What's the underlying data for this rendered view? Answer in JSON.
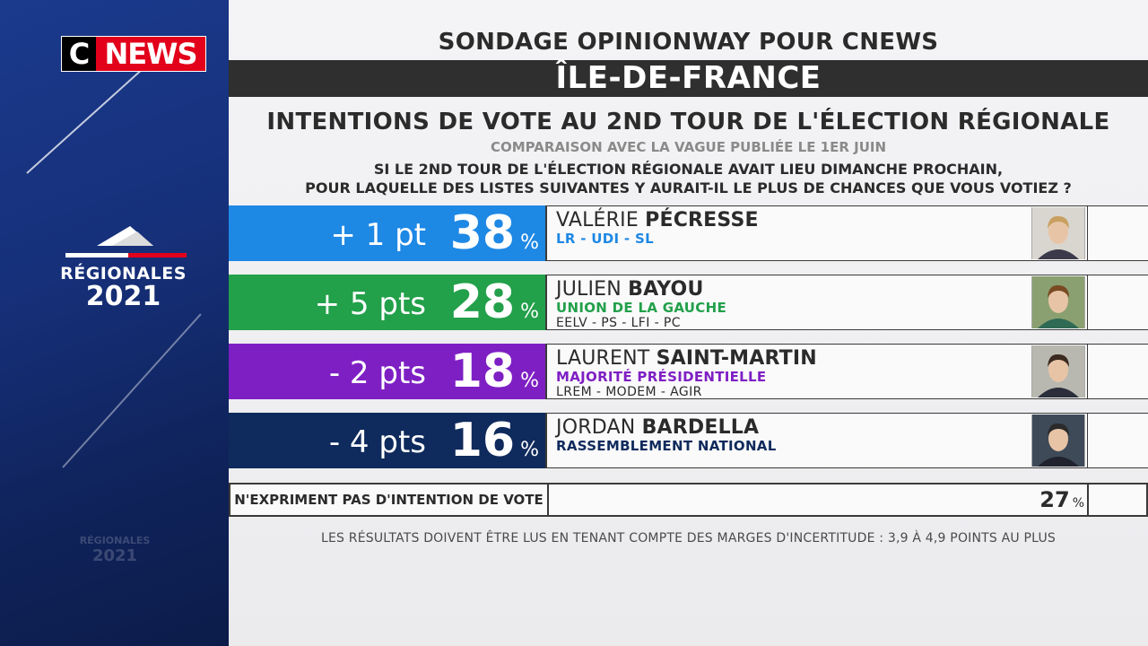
{
  "branding": {
    "logo_c": "C",
    "logo_news": "NEWS",
    "event_title": "RÉGIONALES",
    "event_year": "2021",
    "ghost_title": "RÉGIONALES",
    "ghost_year": "2021",
    "colors": {
      "side_blue": "#1b3a8c",
      "logo_red": "#e2001a"
    }
  },
  "header": {
    "poll_source": "SONDAGE OPINIONWAY POUR CNEWS",
    "region": "ÎLE-DE-FRANCE",
    "question_title": "INTENTIONS DE VOTE AU 2ND TOUR DE L'ÉLECTION RÉGIONALE",
    "comparison_note": "COMPARAISON AVEC LA VAGUE PUBLIÉE LE 1ER JUIN",
    "question_line1": "SI LE 2ND TOUR DE L'ÉLECTION RÉGIONALE AVAIT LIEU DIMANCHE PROCHAIN,",
    "question_line2": "POUR LAQUELLE DES LISTES SUIVANTES Y AURAIT-IL LE PLUS DE CHANCES QUE VOUS VOTIEZ ?"
  },
  "chart_data": {
    "type": "table",
    "percent_sign": "%",
    "rows": [
      {
        "first_name": "VALÉRIE",
        "last_name": "PÉCRESSE",
        "party": "LR - UDI - SL",
        "sub_party": "",
        "value": 38,
        "delta": "+ 1 pt",
        "color": "#1e88e5",
        "party_color": "#1e88e5"
      },
      {
        "first_name": "JULIEN",
        "last_name": "BAYOU",
        "party": "UNION DE LA GAUCHE",
        "sub_party": "EELV - PS - LFI - PC",
        "value": 28,
        "delta": "+ 5 pts",
        "color": "#22a04a",
        "party_color": "#22a04a"
      },
      {
        "first_name": "LAURENT",
        "last_name": "SAINT-MARTIN",
        "party": "MAJORITÉ PRÉSIDENTIELLE",
        "sub_party": "LREM - MODEM - AGIR",
        "value": 18,
        "delta": "- 2 pts",
        "color": "#7e1fc4",
        "party_color": "#7e1fc4"
      },
      {
        "first_name": "JORDAN",
        "last_name": "BARDELLA",
        "party": "RASSEMBLEMENT NATIONAL",
        "sub_party": "",
        "value": 16,
        "delta": "- 4 pts",
        "color": "#0f2a5c",
        "party_color": "#0f2a5c"
      }
    ],
    "abstention": {
      "label": "N'EXPRIMENT PAS D'INTENTION DE VOTE",
      "value": 27
    }
  },
  "footer": {
    "note": "LES RÉSULTATS DOIVENT ÊTRE LUS EN TENANT COMPTE DES MARGES D'INCERTITUDE : 3,9 À 4,9 POINTS AU PLUS"
  }
}
